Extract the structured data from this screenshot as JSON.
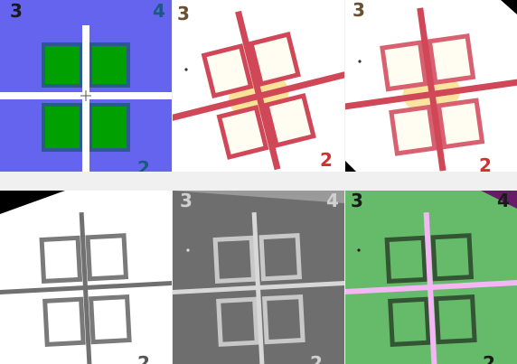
{
  "panels": [
    {
      "style": "color-map-blue",
      "corner_labels": {
        "top_left": "3",
        "top_right": "4",
        "bottom_right": "2"
      },
      "colors": {
        "background": "#6464ee",
        "squares": "#00a000",
        "square_border": "#2a5a90",
        "cross": "#ffffff",
        "label": "#1a1a1a",
        "label_alt": "#1a5a80"
      }
    },
    {
      "style": "raw-red-outline",
      "corner_labels": {
        "top_left": "3",
        "bottom_right": "2"
      },
      "colors": {
        "background": "#ffffff",
        "squares": "#fffdf2",
        "square_border": "#d04858",
        "cross": "#d04858",
        "glow": "#f6cc40",
        "label": "#d03030",
        "label_alt": "#6a5030"
      }
    },
    {
      "style": "raw-red-outline-rotated",
      "corner_labels": {
        "top_left": "3",
        "bottom_right": "2"
      },
      "colors": {
        "background": "#ffffff",
        "squares": "#fffdf2",
        "square_border": "#d86070",
        "cross": "#d04858",
        "glow": "#f6cc40",
        "label": "#d03030",
        "label_alt": "#6a5030"
      }
    },
    {
      "style": "grayscale-light",
      "corner_labels": {
        "bottom_right": "2"
      },
      "colors": {
        "background": "#ffffff",
        "squares": "#ffffff",
        "square_border": "#7a7a7a",
        "cross": "#707070",
        "label": "#555555"
      }
    },
    {
      "style": "grayscale-dark",
      "corner_labels": {
        "top_left": "3",
        "top_right": "4",
        "bottom_right": "2"
      },
      "colors": {
        "background": "#6e6e6e",
        "squares": "#6e6e6e",
        "square_border": "#c8c8c8",
        "cross": "#d8d8d8",
        "label": "#d0d0d0"
      }
    },
    {
      "style": "green-overlay",
      "corner_labels": {
        "top_left": "3",
        "top_right": "4",
        "bottom_right": "2"
      },
      "colors": {
        "background": "#66bb6a",
        "squares": "#66bb6a",
        "square_border": "#335533",
        "cross": "#f4b6f4",
        "corner": "#6a1a6a",
        "label": "#1a1a1a"
      }
    }
  ]
}
